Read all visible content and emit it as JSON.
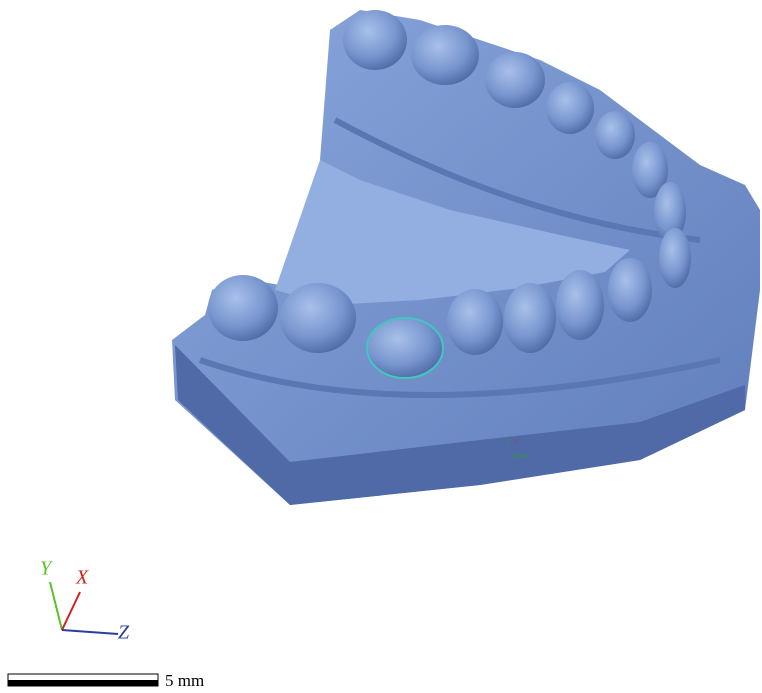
{
  "axes": {
    "y": "Y",
    "x": "X",
    "z": "Z"
  },
  "origin_marker": {
    "y": "y",
    "x": "x",
    "label": "Origin"
  },
  "scale_bar": {
    "label": "5 mm"
  }
}
